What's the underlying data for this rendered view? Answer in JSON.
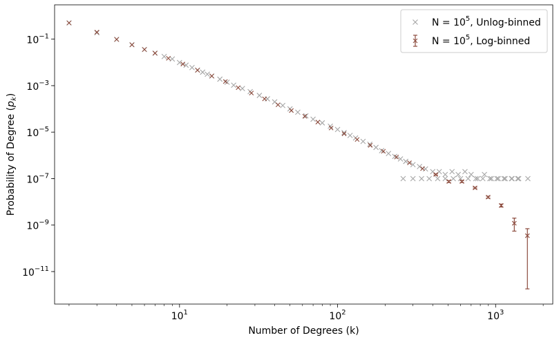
{
  "chart_data": {
    "type": "scatter",
    "title": "",
    "xlabel": "Number of Degrees (k)",
    "ylabel_base": "Probability of Degree (",
    "ylabel_var": "p",
    "ylabel_sub": "k",
    "ylabel_end": ")",
    "x_scale": "log",
    "y_scale": "log",
    "xlim": [
      1.62,
      2300
    ],
    "ylim": [
      4e-13,
      3.0
    ],
    "x_ticks": [
      {
        "value": 10,
        "base": "10",
        "exp": "1"
      },
      {
        "value": 100,
        "base": "10",
        "exp": "2"
      },
      {
        "value": 1000,
        "base": "10",
        "exp": "3"
      }
    ],
    "y_ticks": [
      {
        "value": 1e-11,
        "base": "10",
        "exp": "−11"
      },
      {
        "value": 1e-09,
        "base": "10",
        "exp": "−9"
      },
      {
        "value": 1e-07,
        "base": "10",
        "exp": "−7"
      },
      {
        "value": 1e-05,
        "base": "10",
        "exp": "−5"
      },
      {
        "value": 0.001,
        "base": "10",
        "exp": "−3"
      },
      {
        "value": 0.1,
        "base": "10",
        "exp": "−1"
      }
    ],
    "grid": false,
    "legend_position": "top-right",
    "series": [
      {
        "name_prefix": "N = 10",
        "name_exp": "5",
        "name_suffix": ", Unlog-binned",
        "color": "#a6a6a6",
        "marker": "x",
        "x": [
          2,
          3,
          4,
          5,
          6,
          7,
          8,
          9,
          10,
          11,
          12,
          13,
          14,
          15,
          16,
          18,
          20,
          22,
          25,
          28,
          32,
          36,
          40,
          45,
          50,
          56,
          63,
          70,
          80,
          90,
          100,
          110,
          120,
          130,
          145,
          160,
          175,
          190,
          210,
          230,
          250,
          270,
          300,
          330,
          360,
          400,
          440,
          480,
          530,
          580,
          640,
          700,
          770,
          850,
          940,
          1040,
          1150,
          1270,
          1400,
          1600,
          260,
          300,
          340,
          380,
          430,
          480,
          540,
          600,
          670,
          750,
          830,
          920,
          1020,
          1130,
          1260,
          1380
        ],
        "y": [
          0.5,
          0.19,
          0.098,
          0.058,
          0.036,
          0.025,
          0.018,
          0.014,
          0.0099,
          0.0076,
          0.006,
          0.0047,
          0.0038,
          0.0031,
          0.0026,
          0.0019,
          0.0014,
          0.00105,
          0.00075,
          0.00055,
          0.00038,
          0.00027,
          0.0002,
          0.00014,
          0.0001,
          7.2e-05,
          5e-05,
          3.6e-05,
          2.5e-05,
          1.8e-05,
          1.3e-05,
          9.5e-06,
          7.2e-06,
          5.6e-06,
          4e-06,
          3e-06,
          2.2e-06,
          1.6e-06,
          1.2e-06,
          9e-07,
          7e-07,
          5.5e-07,
          4e-07,
          3.3e-07,
          2.6e-07,
          2e-07,
          2e-07,
          1.5e-07,
          2e-07,
          1.5e-07,
          2e-07,
          1.5e-07,
          1e-07,
          1.5e-07,
          1e-07,
          1e-07,
          1e-07,
          1e-07,
          1e-07,
          1e-07,
          1e-07,
          1e-07,
          1e-07,
          1e-07,
          1e-07,
          1e-07,
          1e-07,
          1e-07,
          1e-07,
          1e-07,
          1e-07,
          1e-07,
          1e-07,
          1e-07,
          1e-07,
          1e-07
        ]
      },
      {
        "name_prefix": "N = 10",
        "name_exp": "5",
        "name_suffix": ", Log-binned",
        "color": "#8b4a3c",
        "marker": "x",
        "errorbars": true,
        "x": [
          2,
          3,
          4,
          5,
          6,
          7,
          8.5,
          10.5,
          13,
          16,
          19.5,
          23.5,
          28.5,
          34.5,
          42,
          51,
          62,
          75,
          91,
          110,
          133,
          161,
          195,
          236,
          285,
          345,
          418,
          506,
          612,
          741,
          897,
          1085,
          1313,
          1589
        ],
        "y": [
          0.5,
          0.2,
          0.098,
          0.057,
          0.036,
          0.025,
          0.015,
          0.0085,
          0.0046,
          0.0026,
          0.0015,
          0.00082,
          0.00048,
          0.00027,
          0.00015,
          8.5e-05,
          4.8e-05,
          2.7e-05,
          1.5e-05,
          8.5e-06,
          4.8e-06,
          2.7e-06,
          1.5e-06,
          8.5e-07,
          4.8e-07,
          2.7e-07,
          1.5e-07,
          7.5e-08,
          7.5e-08,
          4e-08,
          1.6e-08,
          7e-09,
          1.2e-09,
          3.5e-10
        ],
        "y_low": [
          0.5,
          0.2,
          0.098,
          0.057,
          0.036,
          0.025,
          0.015,
          0.0085,
          0.0046,
          0.0026,
          0.0015,
          0.00082,
          0.00048,
          0.00027,
          0.00015,
          8.5e-05,
          4.8e-05,
          2.7e-05,
          1.5e-05,
          8.5e-06,
          4.8e-06,
          2.7e-06,
          1.5e-06,
          8.5e-07,
          4.8e-07,
          2.7e-07,
          1.4e-07,
          6.8e-08,
          6.8e-08,
          3.7e-08,
          1.45e-08,
          6e-09,
          5.5e-10,
          1.8e-12
        ],
        "y_high": [
          0.5,
          0.2,
          0.098,
          0.057,
          0.036,
          0.025,
          0.015,
          0.0085,
          0.0046,
          0.0026,
          0.0015,
          0.00082,
          0.00048,
          0.00027,
          0.00015,
          8.5e-05,
          4.8e-05,
          2.7e-05,
          1.5e-05,
          8.5e-06,
          4.8e-06,
          2.7e-06,
          1.5e-06,
          8.5e-07,
          4.8e-07,
          2.7e-07,
          1.6e-07,
          8.2e-08,
          8.2e-08,
          4.3e-08,
          1.75e-08,
          8e-09,
          2e-09,
          7e-10
        ]
      }
    ]
  }
}
